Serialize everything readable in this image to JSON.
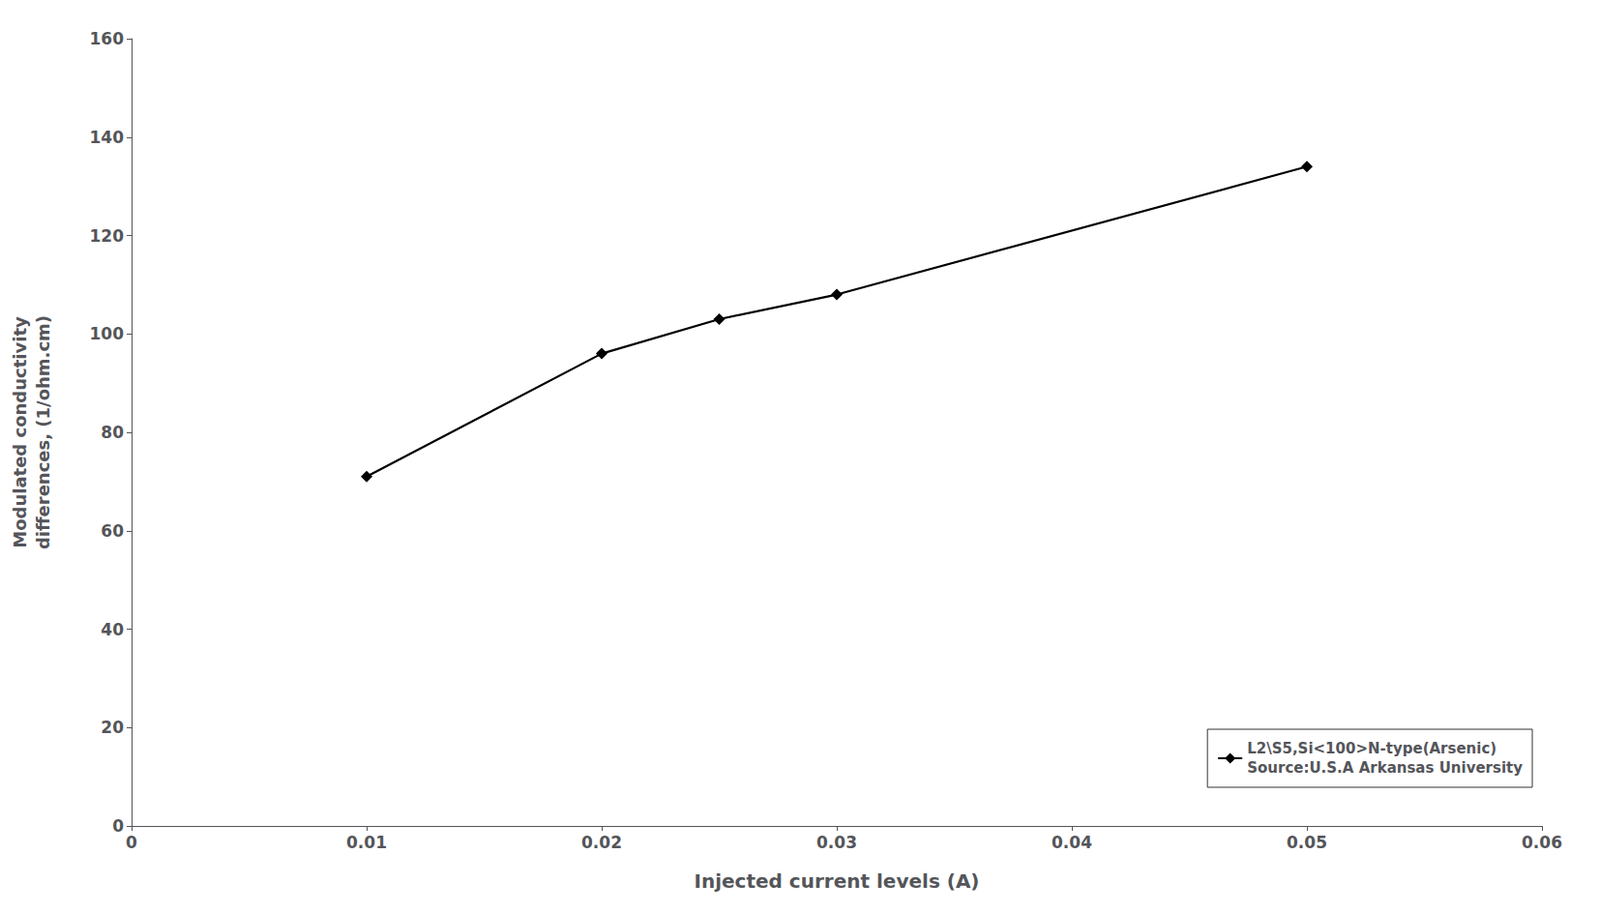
{
  "chart_data": {
    "type": "line",
    "xlabel": "Injected current levels (A)",
    "ylabel": "Modulated conductivity\ndifferences, (1/ohm.cm)",
    "x": [
      0.01,
      0.02,
      0.025,
      0.03,
      0.05
    ],
    "series": [
      {
        "name": "L2\\S5,Si<100>N-type(Arsenic)\nSource:U.S.A Arkansas University",
        "color": "#000000",
        "marker": "diamond",
        "values": [
          71,
          96,
          103,
          108,
          134
        ]
      }
    ],
    "xlim": [
      0,
      0.06
    ],
    "ylim": [
      0,
      160
    ],
    "xticks": [
      0,
      0.01,
      0.02,
      0.03,
      0.04,
      0.05,
      0.06
    ],
    "yticks": [
      0,
      20,
      40,
      60,
      80,
      100,
      120,
      140,
      160
    ],
    "grid": false,
    "legend": "lower right"
  }
}
